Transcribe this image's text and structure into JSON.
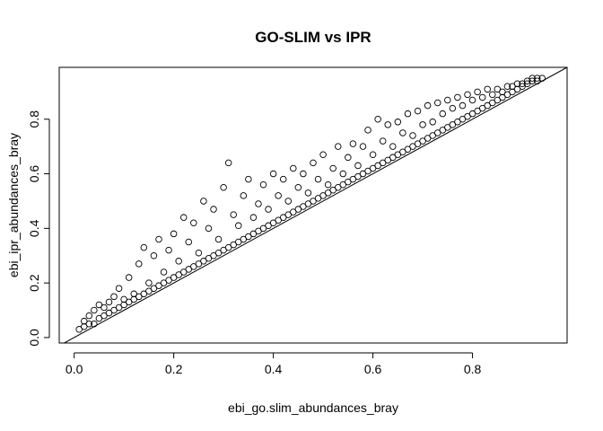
{
  "chart_data": {
    "type": "scatter",
    "title": "GO-SLIM vs IPR",
    "xlabel": "ebi_go.slim_abundances_bray",
    "ylabel": "ebi_ipr_abundances_bray",
    "xlim": [
      -0.03,
      0.99
    ],
    "ylim": [
      -0.02,
      0.99
    ],
    "x_ticks": [
      0.0,
      0.2,
      0.4,
      0.6,
      0.8
    ],
    "y_ticks": [
      0.0,
      0.2,
      0.4,
      0.6,
      0.8
    ],
    "x_tick_labels": [
      "0.0",
      "0.2",
      "0.4",
      "0.6",
      "0.8"
    ],
    "y_tick_labels": [
      "0.0",
      "0.2",
      "0.4",
      "0.6",
      "0.8"
    ],
    "grid": false,
    "legend": "none",
    "marker": "open-circle",
    "reference_line": {
      "type": "abline",
      "intercept": 0,
      "slope": 1
    },
    "points": [
      [
        0.01,
        0.03
      ],
      [
        0.02,
        0.04
      ],
      [
        0.02,
        0.06
      ],
      [
        0.03,
        0.05
      ],
      [
        0.03,
        0.08
      ],
      [
        0.04,
        0.05
      ],
      [
        0.04,
        0.1
      ],
      [
        0.05,
        0.07
      ],
      [
        0.05,
        0.12
      ],
      [
        0.06,
        0.08
      ],
      [
        0.06,
        0.11
      ],
      [
        0.07,
        0.09
      ],
      [
        0.07,
        0.13
      ],
      [
        0.08,
        0.1
      ],
      [
        0.08,
        0.15
      ],
      [
        0.09,
        0.11
      ],
      [
        0.09,
        0.18
      ],
      [
        0.1,
        0.12
      ],
      [
        0.1,
        0.14
      ],
      [
        0.11,
        0.13
      ],
      [
        0.11,
        0.22
      ],
      [
        0.12,
        0.14
      ],
      [
        0.12,
        0.16
      ],
      [
        0.13,
        0.15
      ],
      [
        0.13,
        0.27
      ],
      [
        0.14,
        0.16
      ],
      [
        0.14,
        0.33
      ],
      [
        0.15,
        0.17
      ],
      [
        0.15,
        0.2
      ],
      [
        0.16,
        0.18
      ],
      [
        0.16,
        0.3
      ],
      [
        0.17,
        0.19
      ],
      [
        0.17,
        0.36
      ],
      [
        0.18,
        0.2
      ],
      [
        0.18,
        0.24
      ],
      [
        0.19,
        0.21
      ],
      [
        0.19,
        0.32
      ],
      [
        0.2,
        0.22
      ],
      [
        0.2,
        0.38
      ],
      [
        0.21,
        0.23
      ],
      [
        0.21,
        0.28
      ],
      [
        0.22,
        0.24
      ],
      [
        0.22,
        0.44
      ],
      [
        0.23,
        0.25
      ],
      [
        0.23,
        0.35
      ],
      [
        0.24,
        0.26
      ],
      [
        0.24,
        0.42
      ],
      [
        0.25,
        0.27
      ],
      [
        0.25,
        0.31
      ],
      [
        0.26,
        0.28
      ],
      [
        0.26,
        0.5
      ],
      [
        0.27,
        0.29
      ],
      [
        0.27,
        0.4
      ],
      [
        0.28,
        0.3
      ],
      [
        0.28,
        0.47
      ],
      [
        0.29,
        0.31
      ],
      [
        0.29,
        0.36
      ],
      [
        0.3,
        0.32
      ],
      [
        0.3,
        0.55
      ],
      [
        0.31,
        0.33
      ],
      [
        0.31,
        0.64
      ],
      [
        0.32,
        0.34
      ],
      [
        0.32,
        0.45
      ],
      [
        0.33,
        0.35
      ],
      [
        0.33,
        0.41
      ],
      [
        0.34,
        0.36
      ],
      [
        0.34,
        0.52
      ],
      [
        0.35,
        0.37
      ],
      [
        0.35,
        0.58
      ],
      [
        0.36,
        0.38
      ],
      [
        0.36,
        0.44
      ],
      [
        0.37,
        0.39
      ],
      [
        0.37,
        0.49
      ],
      [
        0.38,
        0.4
      ],
      [
        0.38,
        0.56
      ],
      [
        0.39,
        0.41
      ],
      [
        0.39,
        0.47
      ],
      [
        0.4,
        0.42
      ],
      [
        0.4,
        0.6
      ],
      [
        0.41,
        0.43
      ],
      [
        0.41,
        0.52
      ],
      [
        0.42,
        0.44
      ],
      [
        0.42,
        0.58
      ],
      [
        0.43,
        0.45
      ],
      [
        0.43,
        0.5
      ],
      [
        0.44,
        0.46
      ],
      [
        0.44,
        0.62
      ],
      [
        0.45,
        0.47
      ],
      [
        0.45,
        0.55
      ],
      [
        0.46,
        0.48
      ],
      [
        0.46,
        0.6
      ],
      [
        0.47,
        0.49
      ],
      [
        0.47,
        0.53
      ],
      [
        0.48,
        0.5
      ],
      [
        0.48,
        0.64
      ],
      [
        0.49,
        0.51
      ],
      [
        0.49,
        0.58
      ],
      [
        0.5,
        0.52
      ],
      [
        0.5,
        0.67
      ],
      [
        0.51,
        0.53
      ],
      [
        0.51,
        0.56
      ],
      [
        0.52,
        0.54
      ],
      [
        0.52,
        0.62
      ],
      [
        0.53,
        0.55
      ],
      [
        0.53,
        0.7
      ],
      [
        0.54,
        0.56
      ],
      [
        0.54,
        0.6
      ],
      [
        0.55,
        0.57
      ],
      [
        0.55,
        0.66
      ],
      [
        0.56,
        0.58
      ],
      [
        0.56,
        0.71
      ],
      [
        0.57,
        0.59
      ],
      [
        0.57,
        0.63
      ],
      [
        0.58,
        0.6
      ],
      [
        0.58,
        0.7
      ],
      [
        0.59,
        0.61
      ],
      [
        0.59,
        0.76
      ],
      [
        0.6,
        0.62
      ],
      [
        0.6,
        0.67
      ],
      [
        0.61,
        0.63
      ],
      [
        0.61,
        0.8
      ],
      [
        0.62,
        0.64
      ],
      [
        0.62,
        0.72
      ],
      [
        0.63,
        0.65
      ],
      [
        0.63,
        0.78
      ],
      [
        0.64,
        0.66
      ],
      [
        0.64,
        0.7
      ],
      [
        0.65,
        0.67
      ],
      [
        0.65,
        0.79
      ],
      [
        0.66,
        0.68
      ],
      [
        0.66,
        0.75
      ],
      [
        0.67,
        0.69
      ],
      [
        0.67,
        0.82
      ],
      [
        0.68,
        0.7
      ],
      [
        0.68,
        0.74
      ],
      [
        0.69,
        0.71
      ],
      [
        0.69,
        0.83
      ],
      [
        0.7,
        0.72
      ],
      [
        0.7,
        0.78
      ],
      [
        0.71,
        0.73
      ],
      [
        0.71,
        0.85
      ],
      [
        0.72,
        0.74
      ],
      [
        0.72,
        0.79
      ],
      [
        0.73,
        0.75
      ],
      [
        0.73,
        0.86
      ],
      [
        0.74,
        0.76
      ],
      [
        0.74,
        0.82
      ],
      [
        0.75,
        0.77
      ],
      [
        0.75,
        0.87
      ],
      [
        0.76,
        0.78
      ],
      [
        0.76,
        0.84
      ],
      [
        0.77,
        0.79
      ],
      [
        0.77,
        0.88
      ],
      [
        0.78,
        0.8
      ],
      [
        0.78,
        0.85
      ],
      [
        0.79,
        0.81
      ],
      [
        0.79,
        0.89
      ],
      [
        0.8,
        0.82
      ],
      [
        0.8,
        0.87
      ],
      [
        0.81,
        0.83
      ],
      [
        0.81,
        0.9
      ],
      [
        0.82,
        0.84
      ],
      [
        0.82,
        0.88
      ],
      [
        0.83,
        0.85
      ],
      [
        0.83,
        0.91
      ],
      [
        0.84,
        0.86
      ],
      [
        0.84,
        0.89
      ],
      [
        0.85,
        0.87
      ],
      [
        0.85,
        0.91
      ],
      [
        0.86,
        0.88
      ],
      [
        0.86,
        0.9
      ],
      [
        0.87,
        0.89
      ],
      [
        0.87,
        0.92
      ],
      [
        0.88,
        0.9
      ],
      [
        0.88,
        0.92
      ],
      [
        0.89,
        0.91
      ],
      [
        0.89,
        0.93
      ],
      [
        0.9,
        0.92
      ],
      [
        0.9,
        0.93
      ],
      [
        0.91,
        0.93
      ],
      [
        0.91,
        0.94
      ],
      [
        0.92,
        0.94
      ],
      [
        0.92,
        0.95
      ],
      [
        0.93,
        0.94
      ],
      [
        0.93,
        0.95
      ],
      [
        0.94,
        0.95
      ]
    ]
  }
}
